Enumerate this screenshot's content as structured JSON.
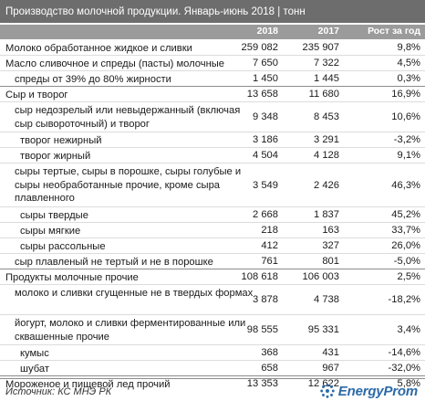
{
  "title": "Производство молочной продукции. Январь-июнь 2018 | тонн",
  "headers": {
    "col1": "2018",
    "col2": "2017",
    "col3": "Рост за год"
  },
  "rows": [
    {
      "label": "Молоко обработанное жидкое и сливки",
      "v2018": "259 082",
      "v2017": "235 907",
      "growth": "9,8%"
    },
    {
      "label": "Масло сливочное и спреды (пасты) молочные",
      "v2018": "7 650",
      "v2017": "7 322",
      "growth": "4,5%"
    },
    {
      "label": "спреды от 39% до 80% жирности",
      "v2018": "1 450",
      "v2017": "1 445",
      "growth": "0,3%"
    },
    {
      "label": "Сыр и творог",
      "v2018": "13 658",
      "v2017": "11 680",
      "growth": "16,9%"
    },
    {
      "label": "сыр недозрелый или невыдержанный (включая сыр сывороточный) и творог",
      "v2018": "9 348",
      "v2017": "8 453",
      "growth": "10,6%"
    },
    {
      "label": "творог нежирный",
      "v2018": "3 186",
      "v2017": "3 291",
      "growth": "-3,2%"
    },
    {
      "label": "творог жирный",
      "v2018": "4 504",
      "v2017": "4 128",
      "growth": "9,1%"
    },
    {
      "label": "сыры тертые, сыры в порошке, сыры голубые и сыры необработанные прочие, кроме сыра плавленного",
      "v2018": "3 549",
      "v2017": "2 426",
      "growth": "46,3%"
    },
    {
      "label": "сыры твердые",
      "v2018": "2 668",
      "v2017": "1 837",
      "growth": "45,2%"
    },
    {
      "label": "сыры мягкие",
      "v2018": "218",
      "v2017": "163",
      "growth": "33,7%"
    },
    {
      "label": "сыры рассольные",
      "v2018": "412",
      "v2017": "327",
      "growth": "26,0%"
    },
    {
      "label": "сыр плавленый не тертый и не в порошке",
      "v2018": "761",
      "v2017": "801",
      "growth": "-5,0%"
    },
    {
      "label": "Продукты молочные прочие",
      "v2018": "108 618",
      "v2017": "106 003",
      "growth": "2,5%"
    },
    {
      "label": "молоко и сливки сгущенные не в твердых формах",
      "v2018": "3 878",
      "v2017": "4 738",
      "growth": "-18,2%"
    },
    {
      "label": "йогурт, молоко и сливки ферментированные или сквашенные прочие",
      "v2018": "98 555",
      "v2017": "95 331",
      "growth": "3,4%"
    },
    {
      "label": "кумыс",
      "v2018": "368",
      "v2017": "431",
      "growth": "-14,6%"
    },
    {
      "label": "шубат",
      "v2018": "658",
      "v2017": "967",
      "growth": "-32,0%"
    },
    {
      "label": "Мороженое и пищевой лед прочий",
      "v2018": "13 353",
      "v2017": "12 622",
      "growth": "5,8%"
    }
  ],
  "footer": {
    "source": "Источник: КС МНЭ РК",
    "logo_text": "EnergyProm",
    "logo_icon": "energyprom-logo-icon"
  },
  "colors": {
    "title_bg": "#6d6d6d",
    "header_bg": "#9b9b9b",
    "logo": "#2b6aa8"
  }
}
